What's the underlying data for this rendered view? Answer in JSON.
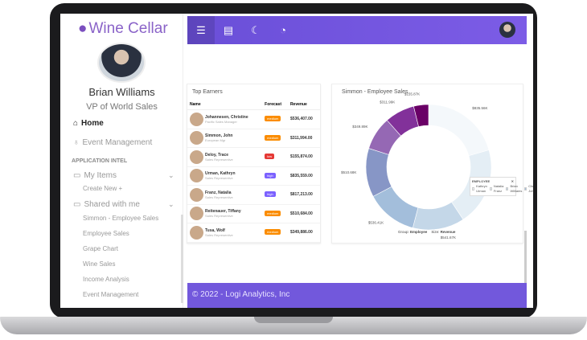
{
  "app": {
    "title": "Wine Cellar"
  },
  "user": {
    "name": "Brian Williams",
    "role": "VP of World Sales"
  },
  "sidebar": {
    "home": "Home",
    "event": "Event Management",
    "section": "APPLICATION INTEL",
    "my_items": "My Items",
    "create_new": "Create New",
    "shared": "Shared with me",
    "shared_items": [
      "Simmon - Employee Sales",
      "Employee Sales",
      "Grape Chart",
      "Wine Sales",
      "Income Analysis",
      "Event Management"
    ]
  },
  "top_earners": {
    "title": "Top Earners",
    "headers": [
      "Name",
      "Forecast",
      "Revenue"
    ],
    "rows": [
      {
        "name": "Johannesen, Christine",
        "title": "Pacific Sales Manager",
        "forecast": "medium",
        "revenue": "$536,407.00"
      },
      {
        "name": "Simmon, John",
        "title": "European Mgr",
        "forecast": "medium",
        "revenue": "$311,994.00"
      },
      {
        "name": "Deloy, Trace",
        "title": "Sales Representive",
        "forecast": "low",
        "revenue": "$155,874.00"
      },
      {
        "name": "Urman, Kathryn",
        "title": "Sales Representive",
        "forecast": "high",
        "revenue": "$835,559.00"
      },
      {
        "name": "Franz, Natalia",
        "title": "Sales Representive",
        "forecast": "high",
        "revenue": "$817,213.00"
      },
      {
        "name": "Reitenauer, Tiffany",
        "title": "Sales Representive",
        "forecast": "medium",
        "revenue": "$510,684.00"
      },
      {
        "name": "Tusa, Wolf",
        "title": "Sales Representive",
        "forecast": "medium",
        "revenue": "$349,886.00"
      }
    ]
  },
  "forecast_colors": {
    "medium": "#fb8c00",
    "low": "#e53935",
    "high": "#7b61ff"
  },
  "chart_data": {
    "type": "pie",
    "title": "Simmon - Employee Sales",
    "legend_title": "EMPLOYEE",
    "legend_placement": "bottom-right",
    "categories": [
      "Kathryn Urman",
      "Natalia Franz",
      "Brian Williams",
      "Christine Johannes...",
      "Tiffany Reitenauer",
      "Wolf Tusa",
      "John Simmon",
      "Trace Deloy"
    ],
    "values": [
      835.56,
      817.21,
      541.67,
      536.41,
      510.68,
      349.89,
      311.99,
      155.87
    ],
    "labels": [
      "$835.56K",
      "",
      "$541.67K",
      "$536.41K",
      "$510.68K",
      "$349.89K",
      "$311.99K",
      "$155.87K"
    ],
    "colors": [
      "#f4f8fb",
      "#e4eef5",
      "#c4d7e8",
      "#a3bedb",
      "#8796c6",
      "#9568b4",
      "#82319a",
      "#6a0066"
    ],
    "group_label": "Group:",
    "group_value": "Employee",
    "size_label": "Size:",
    "size_value": "Revenue"
  },
  "footer": {
    "text": "© 2022 - Logi Analytics, Inc"
  }
}
